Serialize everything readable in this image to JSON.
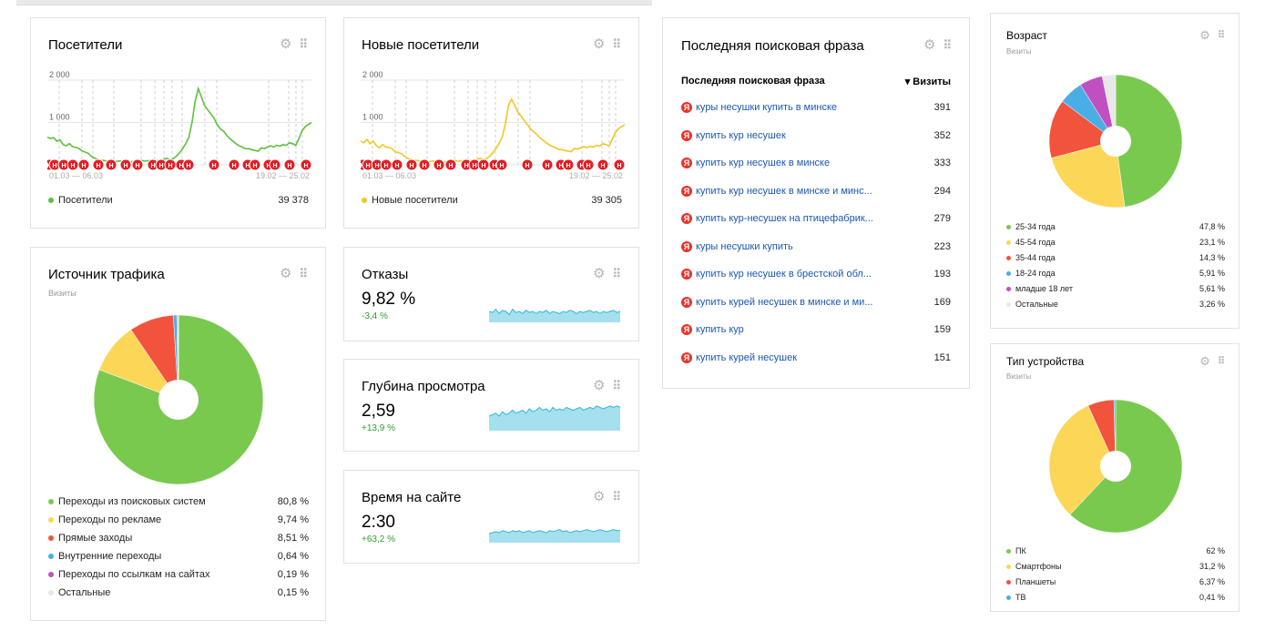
{
  "visitors": {
    "title": "Посетители",
    "y_labels": [
      "2 000",
      "1 000"
    ],
    "x_labels": [
      "01.03 — 06.03",
      "19.02 — 25.02"
    ],
    "legend_label": "Посетители",
    "legend_value": "39 378",
    "color": "#5fbf3e",
    "series": [
      650,
      620,
      640,
      560,
      590,
      480,
      450,
      500,
      430,
      410,
      390,
      330,
      300,
      270,
      200,
      160,
      130,
      110,
      100,
      90,
      80,
      85,
      80,
      90,
      85,
      80,
      70,
      75,
      80,
      90,
      100,
      85,
      95,
      110,
      90,
      100,
      110,
      130,
      150,
      120,
      140,
      200,
      280,
      380,
      500,
      650,
      1000,
      1500,
      1800,
      1600,
      1400,
      1300,
      1200,
      1100,
      950,
      850,
      800,
      700,
      620,
      560,
      500,
      450,
      420,
      380,
      380,
      360,
      340,
      320,
      400,
      380,
      420,
      450,
      420,
      460,
      440,
      480,
      460,
      520,
      500,
      460,
      620,
      800,
      900,
      950,
      1000
    ],
    "marker_label": "Н"
  },
  "new_visitors": {
    "title": "Новые посетители",
    "y_labels": [
      "2 000",
      "1 000"
    ],
    "x_labels": [
      "01.03 — 06.03",
      "19.02 — 25.02"
    ],
    "legend_label": "Новые посетители",
    "legend_value": "39 305",
    "color": "#f3c623",
    "series": [
      560,
      520,
      600,
      500,
      560,
      450,
      400,
      480,
      420,
      410,
      380,
      310,
      290,
      260,
      200,
      150,
      130,
      110,
      100,
      90,
      80,
      85,
      80,
      90,
      85,
      80,
      70,
      75,
      80,
      90,
      100,
      85,
      95,
      110,
      90,
      100,
      110,
      130,
      150,
      120,
      140,
      200,
      280,
      380,
      500,
      650,
      950,
      1400,
      1550,
      1400,
      1250,
      1150,
      1050,
      950,
      850,
      780,
      720,
      640,
      580,
      520,
      470,
      430,
      400,
      360,
      360,
      340,
      320,
      310,
      390,
      370,
      400,
      430,
      400,
      440,
      420,
      460,
      440,
      500,
      480,
      450,
      600,
      760,
      850,
      900,
      950
    ],
    "marker_label": "Н"
  },
  "traffic": {
    "title": "Источник трафика",
    "subtitle": "Визиты",
    "items": [
      {
        "label": "Переходы из поисковых систем",
        "value": "80,8 %",
        "color": "#7ac94f",
        "pct": 80.8
      },
      {
        "label": "Переходы по рекламе",
        "value": "9,74 %",
        "color": "#fcd757",
        "pct": 9.74
      },
      {
        "label": "Прямые заходы",
        "value": "8,51 %",
        "color": "#f1533c",
        "pct": 8.51
      },
      {
        "label": "Внутренние переходы",
        "value": "0,64 %",
        "color": "#4aaee6",
        "pct": 0.64
      },
      {
        "label": "Переходы по ссылкам на сайтах",
        "value": "0,19 %",
        "color": "#c04fc1",
        "pct": 0.19
      },
      {
        "label": "Остальные",
        "value": "0,15 %",
        "color": "#e8e8e8",
        "pct": 0.15
      }
    ]
  },
  "bounce": {
    "title": "Отказы",
    "value": "9,82 %",
    "delta": "-3,4 %",
    "series": [
      0.5,
      0.45,
      0.6,
      0.4,
      0.55,
      0.5,
      0.35,
      0.6,
      0.45,
      0.5,
      0.4,
      0.55,
      0.45,
      0.5,
      0.4,
      0.5,
      0.45,
      0.55,
      0.4,
      0.5,
      0.45,
      0.4,
      0.5,
      0.45,
      0.55,
      0.5,
      0.4,
      0.5,
      0.45,
      0.5,
      0.55,
      0.45,
      0.5,
      0.4,
      0.5,
      0.45,
      0.5,
      0.55,
      0.45,
      0.5
    ]
  },
  "depth": {
    "title": "Глубина просмотра",
    "value": "2,59",
    "delta": "+13,9 %",
    "series": [
      0.5,
      0.55,
      0.6,
      0.5,
      0.65,
      0.55,
      0.6,
      0.7,
      0.6,
      0.65,
      0.7,
      0.6,
      0.75,
      0.65,
      0.7,
      0.8,
      0.7,
      0.75,
      0.65,
      0.8,
      0.7,
      0.75,
      0.7,
      0.8,
      0.75,
      0.7,
      0.75,
      0.8,
      0.7,
      0.75,
      0.8,
      0.75,
      0.85,
      0.8,
      0.75,
      0.8,
      0.85,
      0.8,
      0.85,
      0.8
    ]
  },
  "time": {
    "title": "Время на сайте",
    "value": "2:30",
    "delta": "+63,2 %",
    "series": [
      0.45,
      0.5,
      0.55,
      0.5,
      0.6,
      0.55,
      0.5,
      0.6,
      0.55,
      0.6,
      0.5,
      0.55,
      0.6,
      0.5,
      0.55,
      0.6,
      0.55,
      0.5,
      0.6,
      0.55,
      0.6,
      0.65,
      0.55,
      0.6,
      0.5,
      0.55,
      0.6,
      0.55,
      0.6,
      0.65,
      0.6,
      0.55,
      0.6,
      0.65,
      0.6,
      0.55,
      0.6,
      0.65,
      0.6,
      0.6
    ]
  },
  "search": {
    "title": "Последняя поисковая фраза",
    "col_phrase": "Последняя поисковая фраза",
    "col_visits": "▾ Визиты",
    "icon_glyph": "Я",
    "rows": [
      {
        "phrase": "куры несушки купить в минске",
        "visits": "391"
      },
      {
        "phrase": "купить кур несушек",
        "visits": "352"
      },
      {
        "phrase": "купить кур несушек в минске",
        "visits": "333"
      },
      {
        "phrase": "купить кур несушек в минске и минс...",
        "visits": "294"
      },
      {
        "phrase": "купить кур-несушек на птицефабрик...",
        "visits": "279"
      },
      {
        "phrase": "куры несушки купить",
        "visits": "223"
      },
      {
        "phrase": "купить кур несушек в брестской обл...",
        "visits": "193"
      },
      {
        "phrase": "купить курей несушек в минске и ми...",
        "visits": "169"
      },
      {
        "phrase": "купить кур",
        "visits": "159"
      },
      {
        "phrase": "купить курей несушек",
        "visits": "151"
      }
    ]
  },
  "age": {
    "title": "Возраст",
    "subtitle": "Визиты",
    "items": [
      {
        "label": "25-34 года",
        "value": "47,8 %",
        "color": "#7ac94f",
        "pct": 47.8
      },
      {
        "label": "45-54 года",
        "value": "23,1 %",
        "color": "#fcd757",
        "pct": 23.1
      },
      {
        "label": "35-44 года",
        "value": "14,3 %",
        "color": "#f1533c",
        "pct": 14.3
      },
      {
        "label": "18-24 года",
        "value": "5,91 %",
        "color": "#4aaee6",
        "pct": 5.91
      },
      {
        "label": "младше 18 лет",
        "value": "5,61 %",
        "color": "#c04fc1",
        "pct": 5.61
      },
      {
        "label": "Остальные",
        "value": "3,26 %",
        "color": "#e8e8e8",
        "pct": 3.26
      }
    ]
  },
  "device": {
    "title": "Тип устройства",
    "subtitle": "Визиты",
    "items": [
      {
        "label": "ПК",
        "value": "62 %",
        "color": "#7ac94f",
        "pct": 62
      },
      {
        "label": "Смартфоны",
        "value": "31,2 %",
        "color": "#fcd757",
        "pct": 31.2
      },
      {
        "label": "Планшеты",
        "value": "6,37 %",
        "color": "#f1533c",
        "pct": 6.37
      },
      {
        "label": "ТВ",
        "value": "0,41 %",
        "color": "#4aaee6",
        "pct": 0.41
      }
    ]
  },
  "ctrl_icons": {
    "settings": "⚙",
    "drag": "⠿"
  }
}
